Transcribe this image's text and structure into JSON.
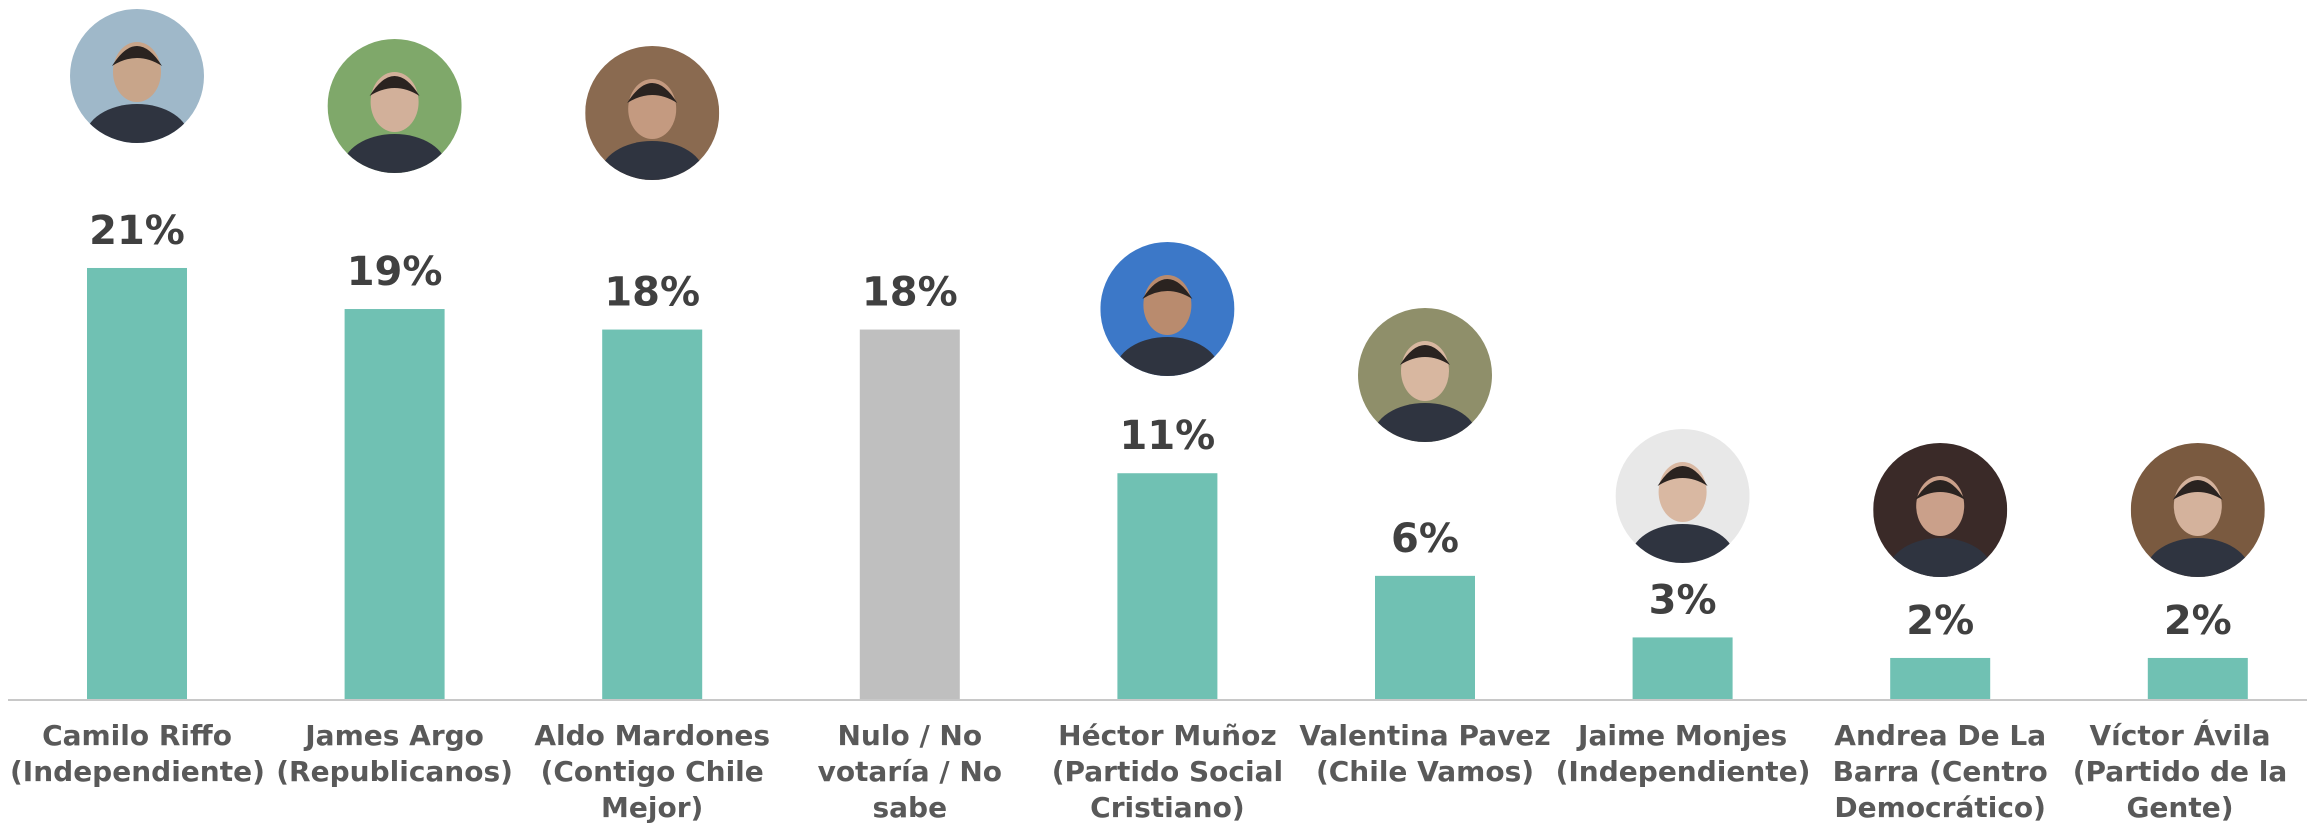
{
  "chart_data": {
    "type": "bar",
    "categories": [
      "Camilo Riffo (Independiente)",
      "James Argo (Republicanos)",
      "Aldo Mardones (Contigo Chile Mejor)",
      "Nulo / No votaría / No sabe",
      "Héctor Muñoz (Partido Social Cristiano)",
      "Valentina Pavez (Chile Vamos)",
      "Jaime Monjes (Independiente)",
      "Andrea De La Barra (Centro Democrático)",
      "Víctor Ávila (Partido de la Gente)"
    ],
    "values": [
      21,
      19,
      18,
      18,
      11,
      6,
      3,
      2,
      2
    ],
    "value_labels": [
      "21%",
      "19%",
      "18%",
      "18%",
      "11%",
      "6%",
      "3%",
      "2%",
      "2%"
    ],
    "colors": [
      "#70c1b3",
      "#70c1b3",
      "#70c1b3",
      "#bfbfbf",
      "#70c1b3",
      "#70c1b3",
      "#70c1b3",
      "#70c1b3",
      "#70c1b3"
    ]
  }
}
